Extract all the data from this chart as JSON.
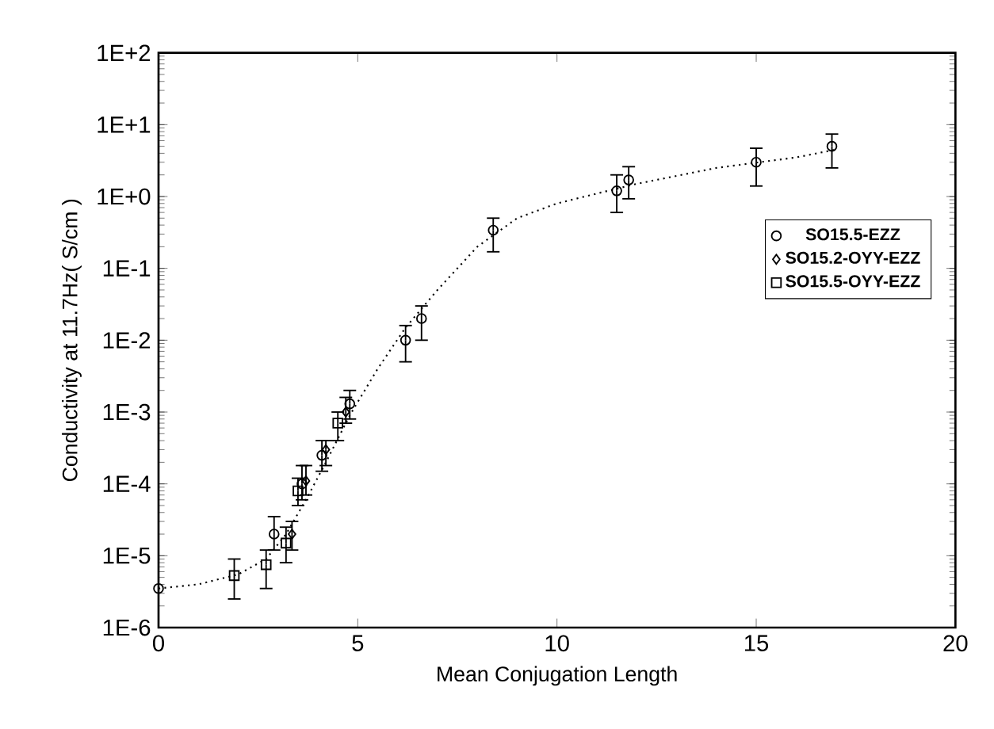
{
  "chart_data": {
    "type": "scatter",
    "xlabel": "Mean Conjugation Length",
    "ylabel": "Conductivity at 11.7Hz( S/cm )",
    "xlim": [
      0,
      20
    ],
    "xticks": [
      0,
      5,
      10,
      15,
      20
    ],
    "ylim": [
      1e-06,
      100
    ],
    "log": "y",
    "yticks": [
      {
        "value": 1e-06,
        "label": "1E-6"
      },
      {
        "value": 1e-05,
        "label": "1E-5"
      },
      {
        "value": 0.0001,
        "label": "1E-4"
      },
      {
        "value": 0.001,
        "label": "1E-3"
      },
      {
        "value": 0.01,
        "label": "1E-2"
      },
      {
        "value": 0.1,
        "label": "1E-1"
      },
      {
        "value": 1,
        "label": "1E+0"
      },
      {
        "value": 10,
        "label": "1E+1"
      },
      {
        "value": 100,
        "label": "1E+2"
      }
    ],
    "grid": false,
    "legend": "right",
    "series": [
      {
        "type": "line",
        "color": "#000000",
        "line_style": "dotted",
        "marker": "none",
        "x": [
          0,
          1,
          2,
          2.7,
          3.2,
          3.7,
          4.2,
          4.8,
          5.5,
          6.2,
          7,
          8,
          9,
          10,
          11,
          12,
          14,
          16,
          17
        ],
        "values": [
          3.5e-06,
          4e-06,
          5.5e-06,
          9e-06,
          2e-05,
          6e-05,
          0.0002,
          0.0009,
          0.004,
          0.015,
          0.05,
          0.2,
          0.5,
          0.8,
          1.1,
          1.5,
          2.5,
          3.5,
          4.5
        ]
      },
      {
        "name": "SO15.5-EZZ",
        "color": "#000000",
        "marker": "circle",
        "x": [
          0,
          2.9,
          3.6,
          4.1,
          4.8,
          6.2,
          6.6,
          8.4,
          11.5,
          11.8,
          15,
          16.9
        ],
        "values": [
          3.5e-06,
          2e-05,
          0.0001,
          0.00025,
          0.0013,
          0.01,
          0.02,
          0.34,
          1.2,
          1.7,
          3,
          5
        ],
        "errors": [
          null,
          [
            1.2e-05,
            3.5e-05
          ],
          [
            6e-05,
            0.00018
          ],
          [
            0.00015,
            0.0004
          ],
          [
            0.0008,
            0.002
          ],
          [
            0.005,
            0.016
          ],
          [
            0.01,
            0.03
          ],
          [
            0.17,
            0.5
          ],
          [
            0.6,
            2
          ],
          [
            0.93,
            2.6
          ],
          [
            1.4,
            4.7
          ],
          [
            2.5,
            7.4
          ]
        ]
      },
      {
        "name": "SO15.2-OYY-EZZ",
        "color": "#000000",
        "marker": "diamond",
        "x": [
          3.35,
          3.7,
          4.2,
          4.7
        ],
        "values": [
          2e-05,
          0.00011,
          0.0003,
          0.001
        ],
        "errors": [
          [
            1.2e-05,
            3e-05
          ],
          [
            7e-05,
            0.00018
          ],
          [
            0.00018,
            0.0004
          ],
          [
            0.0007,
            0.0016
          ]
        ]
      },
      {
        "name": "SO15.5-OYY-EZZ",
        "color": "#000000",
        "marker": "square",
        "x": [
          1.9,
          2.7,
          3.2,
          3.5,
          4.5
        ],
        "values": [
          5.3e-06,
          7.5e-06,
          1.5e-05,
          8e-05,
          0.0007
        ],
        "errors": [
          [
            2.5e-06,
            9e-06
          ],
          [
            3.5e-06,
            1.2e-05
          ],
          [
            8e-06,
            2.5e-05
          ],
          [
            5e-05,
            0.00012
          ],
          [
            0.0004,
            0.001
          ]
        ]
      }
    ]
  }
}
